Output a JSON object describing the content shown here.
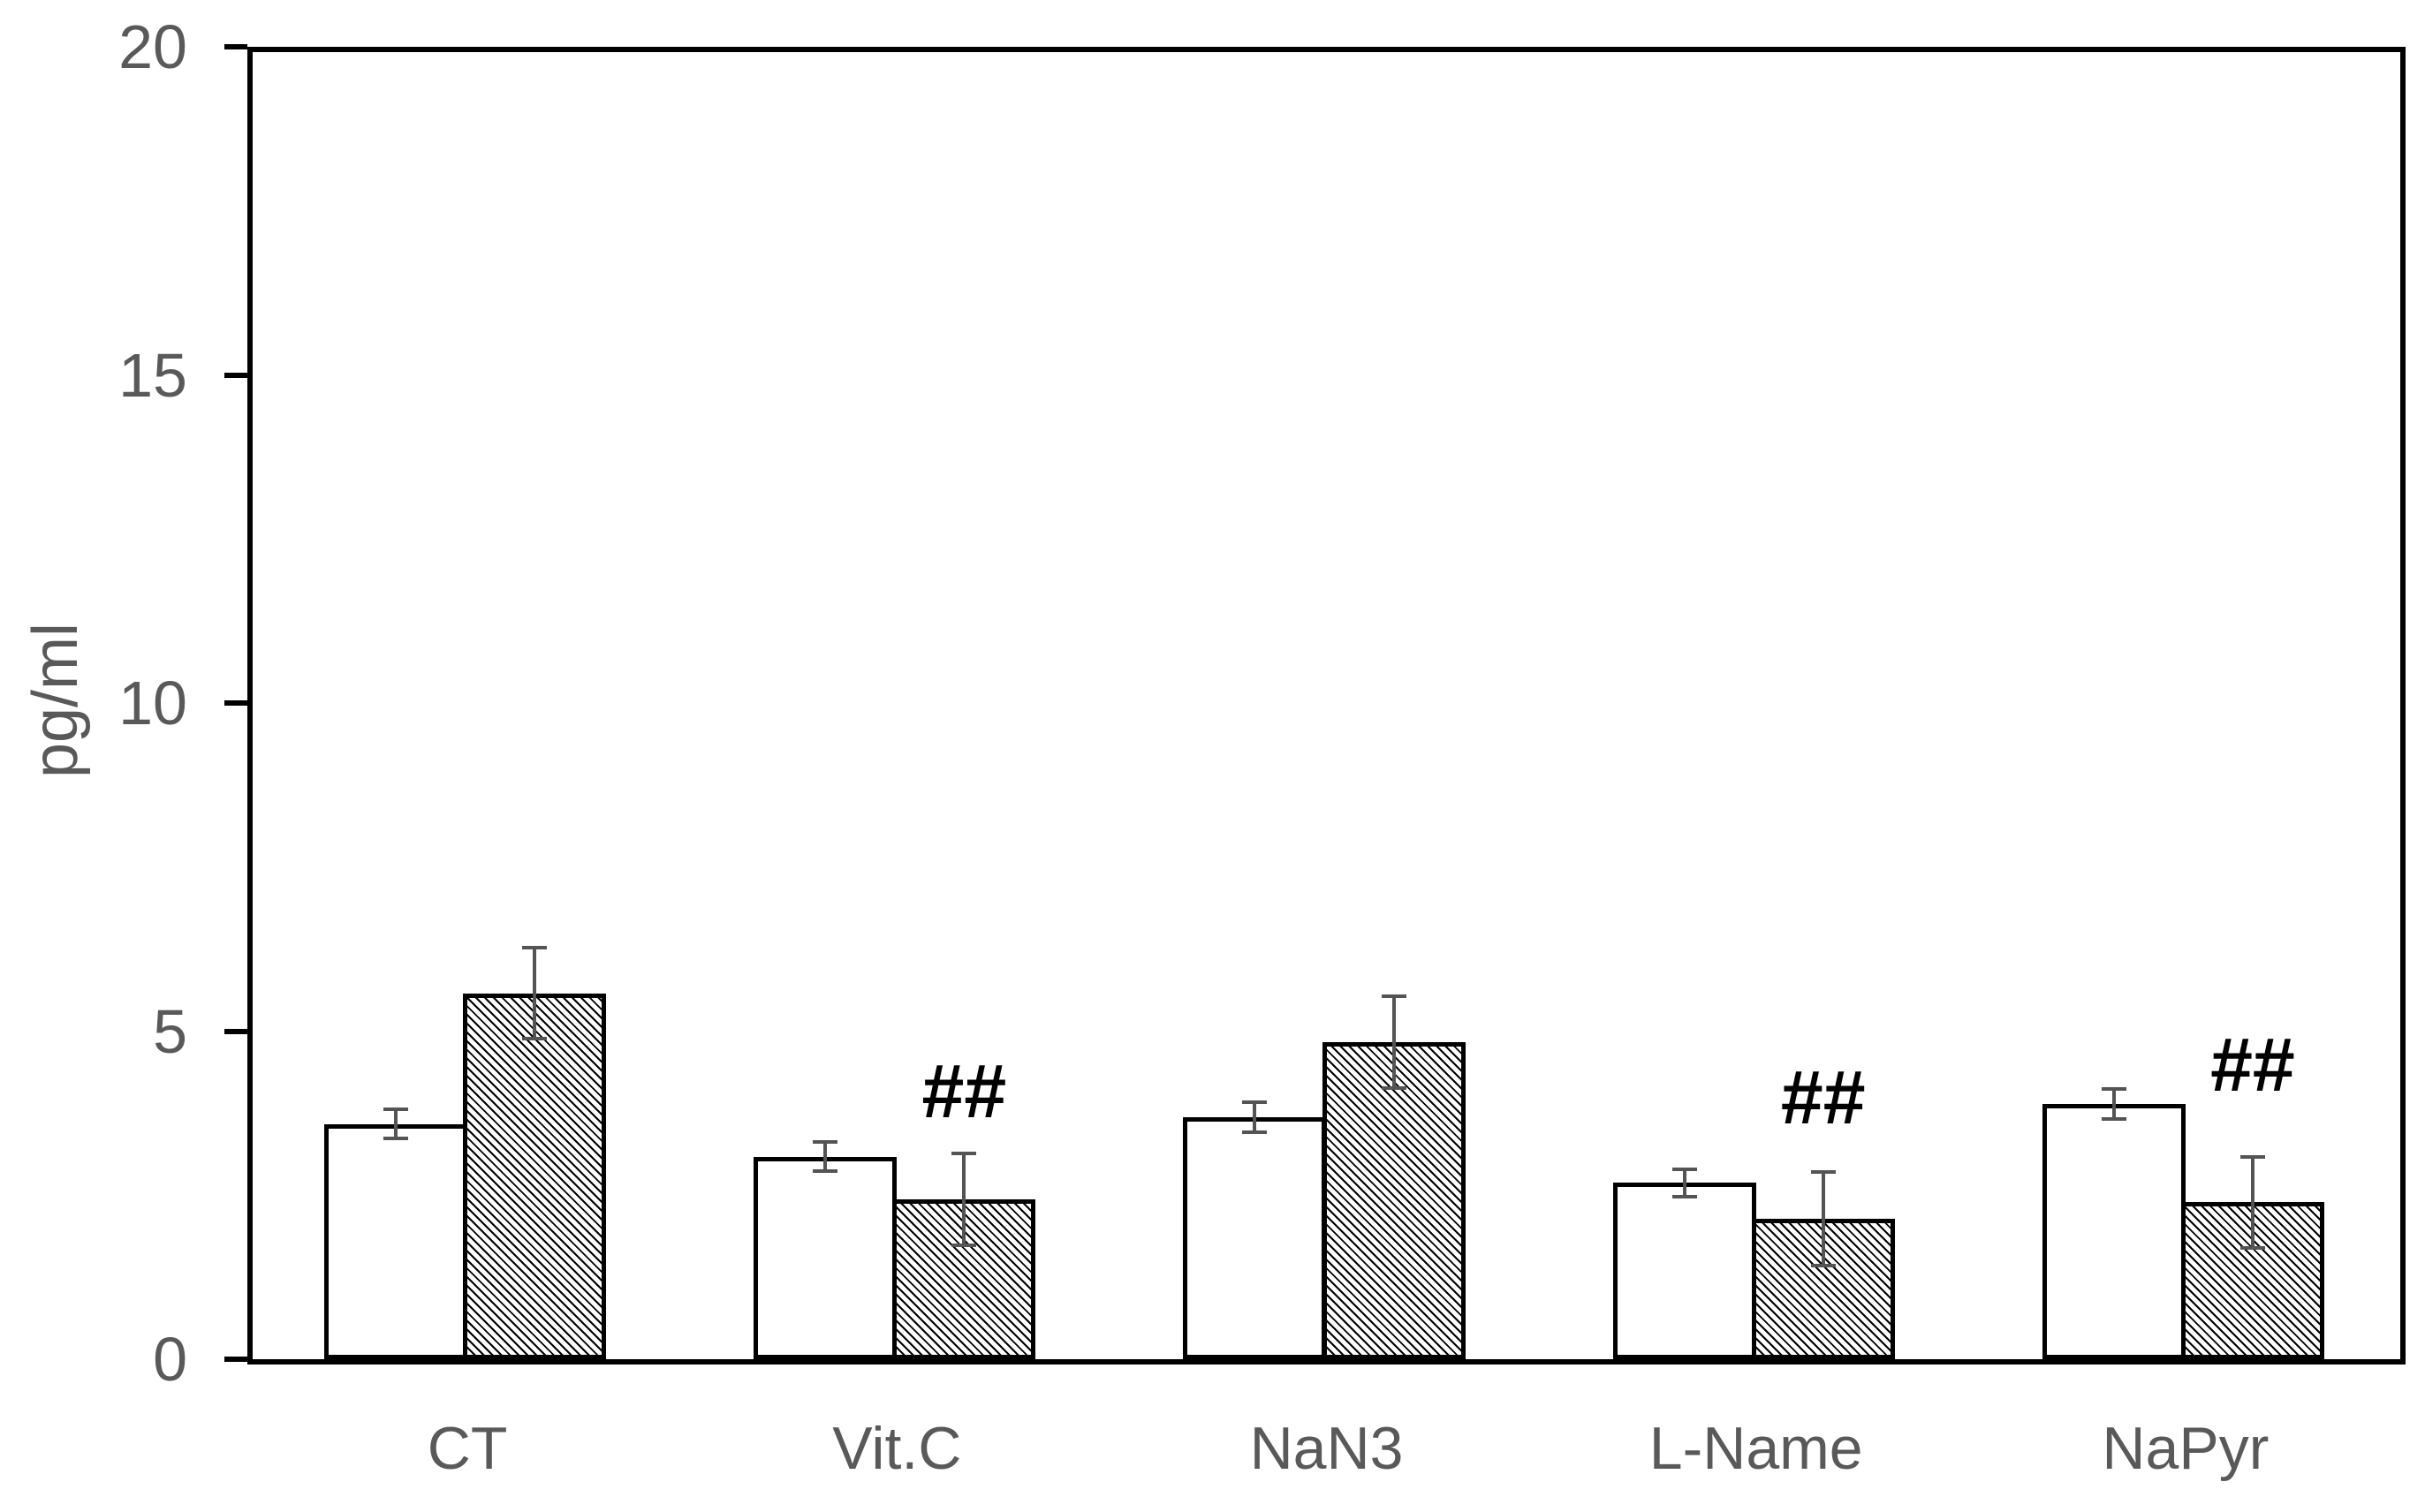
{
  "figure": {
    "background": "#ffffff"
  },
  "chart_data": {
    "type": "bar",
    "title": "",
    "xlabel": "",
    "ylabel": "pg/ml",
    "ylim": [
      0,
      20
    ],
    "yticks": [
      0,
      5,
      10,
      15,
      20
    ],
    "grid": false,
    "legend": "none",
    "categories": [
      "CT",
      "Vit.C",
      "NaN3",
      "L-Name",
      "NaPyr"
    ],
    "series": [
      {
        "name": "white",
        "pattern": "plain-white",
        "values": [
          3.6,
          3.1,
          3.7,
          2.7,
          3.9
        ],
        "errors": [
          0.22,
          0.22,
          0.23,
          0.21,
          0.23
        ]
      },
      {
        "name": "hatched",
        "pattern": "diagonal-hatch",
        "values": [
          5.6,
          2.45,
          4.85,
          2.15,
          2.4
        ],
        "errors": [
          0.7,
          0.7,
          0.7,
          0.72,
          0.7
        ]
      }
    ],
    "annotations": [
      {
        "text": "##",
        "category": "Vit.C",
        "series": "hatched",
        "y": 4.1
      },
      {
        "text": "##",
        "category": "L-Name",
        "series": "hatched",
        "y": 4.0
      },
      {
        "text": "##",
        "category": "NaPyr",
        "series": "hatched",
        "y": 4.5
      }
    ]
  },
  "colors": {
    "axis": "#000000",
    "bar_outline": "#000000",
    "bar_fill": "#ffffff",
    "hatch_line": "#000000",
    "error_bar": "#545454",
    "tick_label": "#595959",
    "axis_label": "#595959",
    "annotation": "#000000"
  }
}
